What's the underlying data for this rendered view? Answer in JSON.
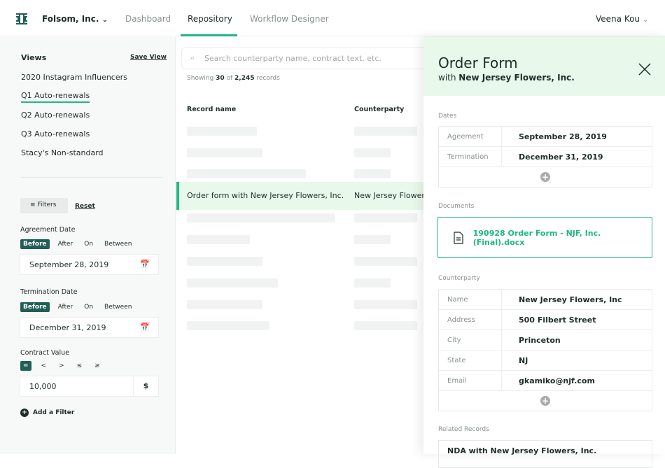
{
  "header": {
    "org": "Folsom, Inc.",
    "tabs": [
      "Dashboard",
      "Repository",
      "Workflow Designer"
    ],
    "user": "Veena Kou",
    "accent": "#1fb882"
  },
  "sidebar": {
    "views_title": "Views",
    "save_view": "Save View",
    "views": [
      "2020 Instagram Influencers",
      "Q1 Auto-renewals",
      "Q2 Auto-renewals",
      "Q3 Auto-renewals",
      "Stacy's Non-standard"
    ],
    "active_view": 1,
    "filters_button": "Filters",
    "reset": "Reset",
    "agreement": {
      "label": "Agreement Date",
      "ops": [
        "Before",
        "After",
        "On",
        "Between"
      ],
      "value": "September 28, 2019"
    },
    "termination": {
      "label": "Termination Date",
      "ops": [
        "Before",
        "After",
        "On",
        "Between"
      ],
      "value": "December 31, 2019"
    },
    "contract": {
      "label": "Contract Value",
      "ops": [
        "=",
        "<",
        ">",
        "≤",
        "≥"
      ],
      "value": "10,000",
      "unit": "$"
    },
    "add_filter": "Add a Filter"
  },
  "main": {
    "search_placeholder": "Search counterparty name, contract text, etc.",
    "showing_prefix": "Showing",
    "shown": "30",
    "of": "of",
    "total": "2,245",
    "records": "records",
    "columns": [
      "Record name",
      "Counterparty"
    ],
    "selected": {
      "name": "Order form with New Jersey Flowers, Inc.",
      "counterparty": "New Jersey Flowers, Inc."
    }
  },
  "panel": {
    "title": "Order Form",
    "subtitle_prefix": "with",
    "subtitle": "New Jersey Flowers, Inc.",
    "dates_label": "Dates",
    "dates": [
      {
        "k": "Ageement",
        "v": "September 28, 2019"
      },
      {
        "k": "Termination",
        "v": "December 31, 2019"
      }
    ],
    "documents_label": "Documents",
    "document": "190928 Order Form - NJF, Inc. (Final).docx",
    "counterparty_label": "Counterparty",
    "counterparty": [
      {
        "k": "Name",
        "v": "New Jersey Flowers, Inc"
      },
      {
        "k": "Address",
        "v": "500 Filbert Street"
      },
      {
        "k": "City",
        "v": "Princeton"
      },
      {
        "k": "State",
        "v": "NJ"
      },
      {
        "k": "Email",
        "v": "gkamiko@njf.com"
      }
    ],
    "related_label": "Related Records",
    "related": [
      "NDA with New Jersey Flowers, Inc."
    ]
  }
}
